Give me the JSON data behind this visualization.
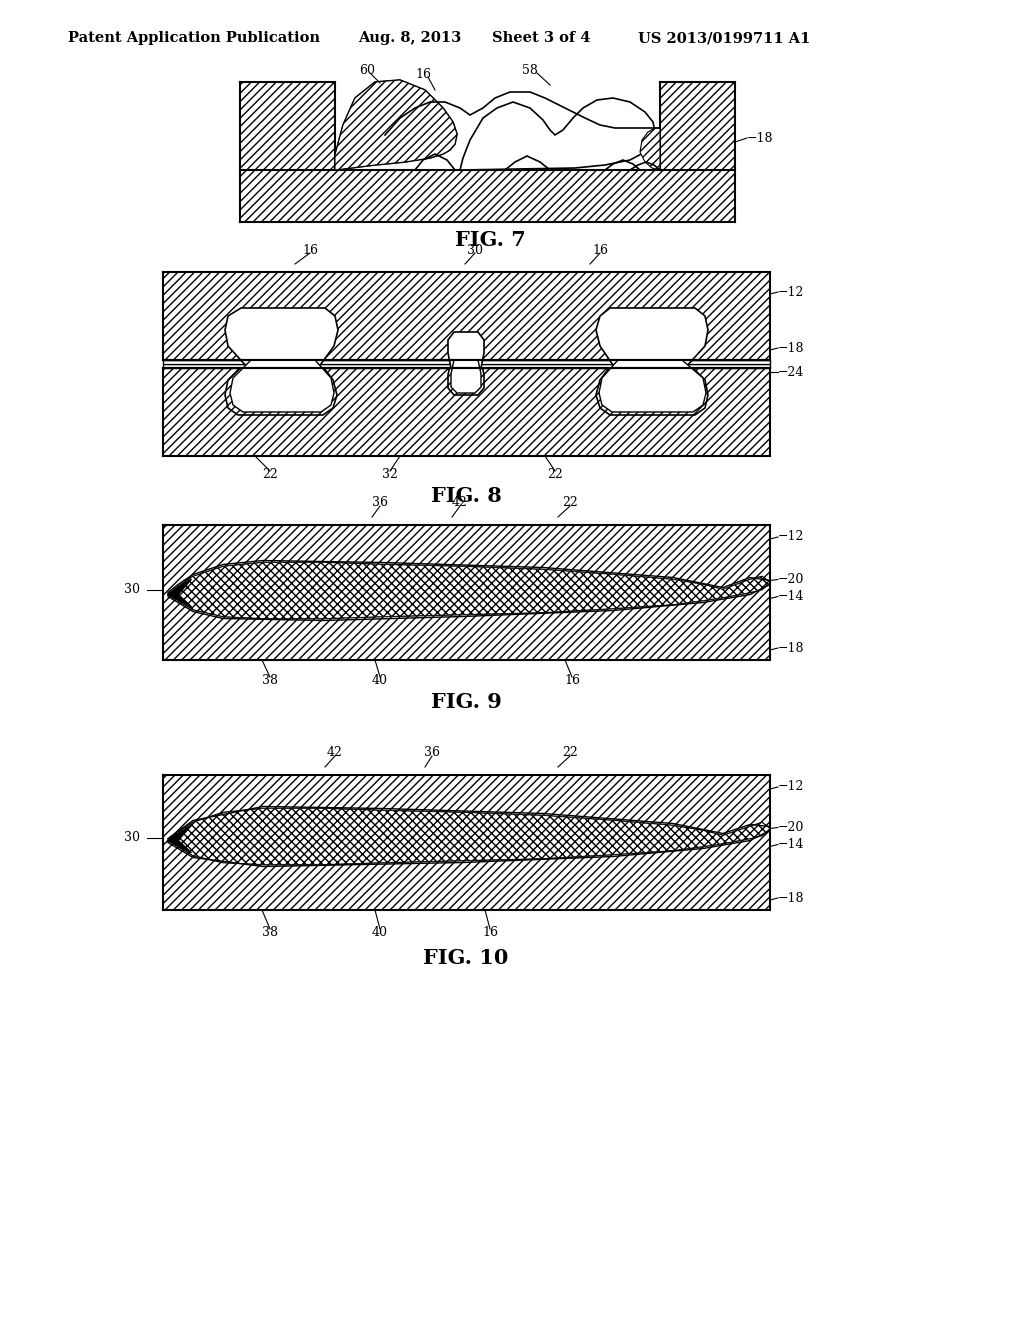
{
  "title_text": "Patent Application Publication",
  "date_text": "Aug. 8, 2013",
  "sheet_text": "Sheet 3 of 4",
  "patent_text": "US 2013/0199711 A1",
  "fig7_label": "FIG. 7",
  "fig8_label": "FIG. 8",
  "fig9_label": "FIG. 9",
  "fig10_label": "FIG. 10",
  "bg_color": "#ffffff"
}
